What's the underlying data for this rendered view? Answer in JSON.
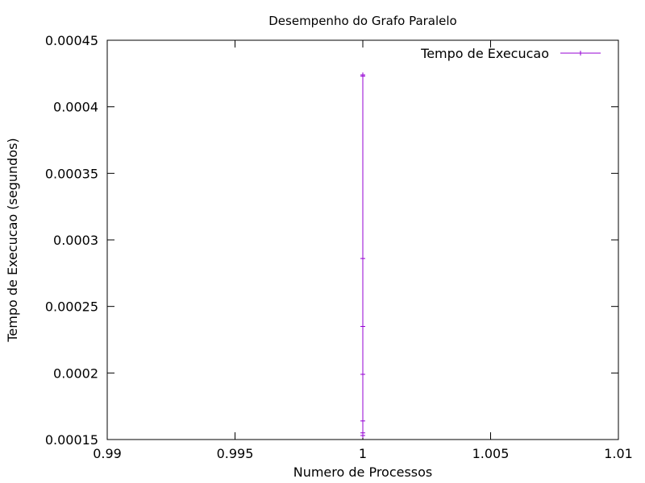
{
  "chart_data": {
    "type": "line",
    "title": "Desempenho do Grafo Paralelo",
    "xlabel": "Numero de Processos",
    "ylabel": "Tempo de Execucao (segundos)",
    "xlim": [
      0.99,
      1.01
    ],
    "ylim": [
      0.00015,
      0.00045
    ],
    "xticks": [
      0.99,
      0.995,
      1,
      1.005,
      1.01
    ],
    "xtick_labels": [
      "0.99",
      "0.995",
      "1",
      "1.005",
      "1.01"
    ],
    "yticks": [
      0.00015,
      0.0002,
      0.00025,
      0.0003,
      0.00035,
      0.0004,
      0.00045
    ],
    "ytick_labels": [
      "0.00015",
      "0.0002",
      "0.00025",
      "0.0003",
      "0.00035",
      "0.0004",
      "0.00045"
    ],
    "grid": false,
    "legend_position": "top-right",
    "series": [
      {
        "name": "Tempo de Execucao",
        "color": "#9400d3",
        "marker": "plus",
        "points": [
          {
            "x": 1,
            "y": 0.000153
          },
          {
            "x": 1,
            "y": 0.000155
          },
          {
            "x": 1,
            "y": 0.000164
          },
          {
            "x": 1,
            "y": 0.000199
          },
          {
            "x": 1,
            "y": 0.000235
          },
          {
            "x": 1,
            "y": 0.000286
          },
          {
            "x": 1,
            "y": 0.000423
          },
          {
            "x": 1,
            "y": 0.000424
          }
        ]
      }
    ]
  }
}
